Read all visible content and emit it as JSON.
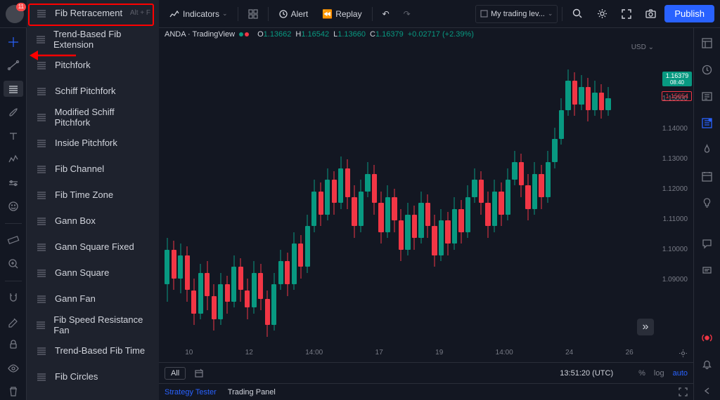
{
  "avatar": {
    "badge": "11"
  },
  "topbar": {
    "indicators": "Indicators",
    "alert": "Alert",
    "replay": "Replay",
    "watchlist_label": "My trading lev...",
    "publish": "Publish"
  },
  "tool_menu": [
    {
      "label": "Fib Retracement",
      "shortcut": "Alt + F"
    },
    {
      "label": "Trend-Based Fib Extension"
    },
    {
      "label": "Pitchfork"
    },
    {
      "label": "Schiff Pitchfork"
    },
    {
      "label": "Modified Schiff Pitchfork"
    },
    {
      "label": "Inside Pitchfork"
    },
    {
      "label": "Fib Channel"
    },
    {
      "label": "Fib Time Zone"
    },
    {
      "label": "Gann Box"
    },
    {
      "label": "Gann Square Fixed"
    },
    {
      "label": "Gann Square"
    },
    {
      "label": "Gann Fan"
    },
    {
      "label": "Fib Speed Resistance Fan"
    },
    {
      "label": "Trend-Based Fib Time"
    },
    {
      "label": "Fib Circles"
    }
  ],
  "chart_header": {
    "symbol": "ANDA · TradingView",
    "O": "1.13662",
    "H": "1.16542",
    "L": "1.13660",
    "C": "1.16379",
    "change": "+0.02717 (+2.39%)"
  },
  "currency": "USD",
  "price_markers": {
    "current": {
      "value": "1.16379",
      "sub": "08:40",
      "bg": "#089981"
    },
    "last": {
      "value": "1.15654",
      "bg": "transparent",
      "border": "#f23645",
      "color": "#f23645"
    }
  },
  "price_axis": {
    "labels": [
      "1.15000",
      "1.14000",
      "1.13000",
      "1.12000",
      "1.11000",
      "1.10000",
      "1.09000"
    ],
    "top_pct": [
      18,
      28,
      38,
      48,
      58,
      68,
      78
    ]
  },
  "time_axis": [
    "10",
    "12",
    "14:00",
    "17",
    "19",
    "14:00",
    "24",
    "26"
  ],
  "candles": {
    "width_pct": 1.05,
    "gap_pct": 1.35,
    "up_color": "#089981",
    "down_color": "#f23645",
    "data": [
      {
        "o": 20,
        "c": 32,
        "h": 36,
        "l": 14,
        "up": true
      },
      {
        "o": 32,
        "c": 22,
        "h": 35,
        "l": 18,
        "up": false
      },
      {
        "o": 22,
        "c": 30,
        "h": 34,
        "l": 17,
        "up": true
      },
      {
        "o": 30,
        "c": 18,
        "h": 33,
        "l": 14,
        "up": false
      },
      {
        "o": 18,
        "c": 10,
        "h": 22,
        "l": 6,
        "up": false
      },
      {
        "o": 10,
        "c": 24,
        "h": 27,
        "l": 8,
        "up": true
      },
      {
        "o": 24,
        "c": 16,
        "h": 28,
        "l": 11,
        "up": false
      },
      {
        "o": 16,
        "c": 8,
        "h": 20,
        "l": 4,
        "up": false
      },
      {
        "o": 8,
        "c": 20,
        "h": 24,
        "l": 6,
        "up": true
      },
      {
        "o": 20,
        "c": 14,
        "h": 23,
        "l": 10,
        "up": false
      },
      {
        "o": 14,
        "c": 26,
        "h": 30,
        "l": 12,
        "up": true
      },
      {
        "o": 26,
        "c": 18,
        "h": 29,
        "l": 14,
        "up": false
      },
      {
        "o": 18,
        "c": 12,
        "h": 22,
        "l": 8,
        "up": false
      },
      {
        "o": 12,
        "c": 24,
        "h": 28,
        "l": 10,
        "up": true
      },
      {
        "o": 24,
        "c": 15,
        "h": 27,
        "l": 11,
        "up": false
      },
      {
        "o": 15,
        "c": 6,
        "h": 18,
        "l": 2,
        "up": false
      },
      {
        "o": 6,
        "c": 20,
        "h": 24,
        "l": 4,
        "up": true
      },
      {
        "o": 20,
        "c": 28,
        "h": 32,
        "l": 18,
        "up": true
      },
      {
        "o": 28,
        "c": 20,
        "h": 31,
        "l": 16,
        "up": false
      },
      {
        "o": 20,
        "c": 34,
        "h": 38,
        "l": 18,
        "up": true
      },
      {
        "o": 34,
        "c": 26,
        "h": 37,
        "l": 22,
        "up": false
      },
      {
        "o": 26,
        "c": 40,
        "h": 44,
        "l": 24,
        "up": true
      },
      {
        "o": 40,
        "c": 52,
        "h": 56,
        "l": 38,
        "up": true
      },
      {
        "o": 52,
        "c": 44,
        "h": 55,
        "l": 40,
        "up": false
      },
      {
        "o": 44,
        "c": 56,
        "h": 60,
        "l": 42,
        "up": true
      },
      {
        "o": 56,
        "c": 48,
        "h": 59,
        "l": 44,
        "up": false
      },
      {
        "o": 48,
        "c": 60,
        "h": 64,
        "l": 46,
        "up": true
      },
      {
        "o": 60,
        "c": 50,
        "h": 63,
        "l": 46,
        "up": false
      },
      {
        "o": 50,
        "c": 40,
        "h": 54,
        "l": 36,
        "up": false
      },
      {
        "o": 40,
        "c": 52,
        "h": 56,
        "l": 38,
        "up": true
      },
      {
        "o": 52,
        "c": 58,
        "h": 62,
        "l": 50,
        "up": true
      },
      {
        "o": 58,
        "c": 48,
        "h": 61,
        "l": 44,
        "up": false
      },
      {
        "o": 48,
        "c": 38,
        "h": 52,
        "l": 34,
        "up": false
      },
      {
        "o": 38,
        "c": 50,
        "h": 54,
        "l": 36,
        "up": true
      },
      {
        "o": 50,
        "c": 42,
        "h": 53,
        "l": 38,
        "up": false
      },
      {
        "o": 42,
        "c": 32,
        "h": 46,
        "l": 28,
        "up": false
      },
      {
        "o": 32,
        "c": 44,
        "h": 48,
        "l": 30,
        "up": true
      },
      {
        "o": 44,
        "c": 36,
        "h": 47,
        "l": 32,
        "up": false
      },
      {
        "o": 36,
        "c": 48,
        "h": 52,
        "l": 34,
        "up": true
      },
      {
        "o": 48,
        "c": 40,
        "h": 51,
        "l": 36,
        "up": false
      },
      {
        "o": 40,
        "c": 30,
        "h": 44,
        "l": 26,
        "up": false
      },
      {
        "o": 30,
        "c": 42,
        "h": 46,
        "l": 28,
        "up": true
      },
      {
        "o": 42,
        "c": 34,
        "h": 45,
        "l": 30,
        "up": false
      },
      {
        "o": 34,
        "c": 46,
        "h": 50,
        "l": 32,
        "up": true
      },
      {
        "o": 46,
        "c": 38,
        "h": 49,
        "l": 34,
        "up": false
      },
      {
        "o": 38,
        "c": 50,
        "h": 54,
        "l": 36,
        "up": true
      },
      {
        "o": 50,
        "c": 56,
        "h": 60,
        "l": 48,
        "up": true
      },
      {
        "o": 56,
        "c": 48,
        "h": 59,
        "l": 44,
        "up": false
      },
      {
        "o": 48,
        "c": 40,
        "h": 52,
        "l": 36,
        "up": false
      },
      {
        "o": 40,
        "c": 52,
        "h": 56,
        "l": 38,
        "up": true
      },
      {
        "o": 52,
        "c": 44,
        "h": 55,
        "l": 40,
        "up": false
      },
      {
        "o": 44,
        "c": 56,
        "h": 60,
        "l": 42,
        "up": true
      },
      {
        "o": 56,
        "c": 62,
        "h": 66,
        "l": 54,
        "up": true
      },
      {
        "o": 62,
        "c": 54,
        "h": 65,
        "l": 50,
        "up": false
      },
      {
        "o": 54,
        "c": 46,
        "h": 58,
        "l": 42,
        "up": false
      },
      {
        "o": 46,
        "c": 58,
        "h": 62,
        "l": 44,
        "up": true
      },
      {
        "o": 58,
        "c": 50,
        "h": 61,
        "l": 46,
        "up": false
      },
      {
        "o": 50,
        "c": 62,
        "h": 66,
        "l": 48,
        "up": true
      },
      {
        "o": 62,
        "c": 70,
        "h": 74,
        "l": 60,
        "up": true
      },
      {
        "o": 70,
        "c": 80,
        "h": 84,
        "l": 68,
        "up": true
      },
      {
        "o": 80,
        "c": 90,
        "h": 94,
        "l": 78,
        "up": true
      },
      {
        "o": 90,
        "c": 82,
        "h": 93,
        "l": 78,
        "up": false
      },
      {
        "o": 82,
        "c": 88,
        "h": 92,
        "l": 80,
        "up": true
      },
      {
        "o": 88,
        "c": 80,
        "h": 91,
        "l": 76,
        "up": false
      },
      {
        "o": 80,
        "c": 86,
        "h": 90,
        "l": 78,
        "up": true
      },
      {
        "o": 86,
        "c": 80,
        "h": 89,
        "l": 77,
        "up": false
      },
      {
        "o": 80,
        "c": 84,
        "h": 88,
        "l": 78,
        "up": true
      }
    ]
  },
  "bottom": {
    "all": "All",
    "time": "13:51:20 (UTC)",
    "pct": "%",
    "log": "log",
    "auto": "auto",
    "strategy_tester": "Strategy Tester",
    "trading_panel": "Trading Panel"
  }
}
